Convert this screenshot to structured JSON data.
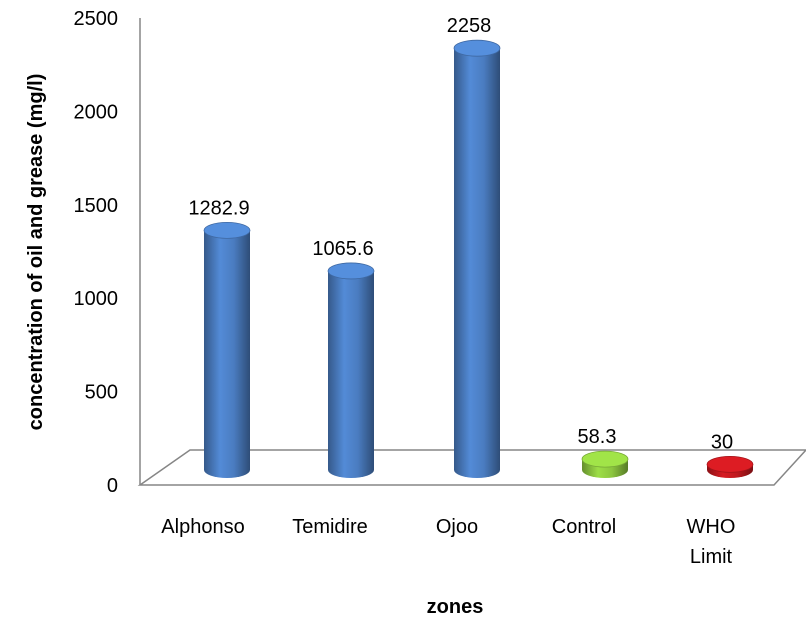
{
  "chart_data": {
    "type": "bar",
    "style": "3d-cylinder",
    "categories": [
      "Alphonso",
      "Temidire",
      "Ojoo",
      "Control",
      "WHO Limit"
    ],
    "values": [
      1282.9,
      1065.6,
      2258,
      58.3,
      30
    ],
    "data_labels": [
      "1282.9",
      "1065.6",
      "2258",
      "58.3",
      "30"
    ],
    "colors": [
      "#4a7cc0",
      "#4a7cc0",
      "#4a7cc0",
      "#8cc63f",
      "#c0181e"
    ],
    "xlabel": "zones",
    "ylabel": "concentration of oil and grease (mg/l)",
    "ylim": [
      0,
      2500
    ],
    "yticks": [
      0,
      500,
      1000,
      1500,
      2000,
      2500
    ],
    "grid": false,
    "legend": "none"
  }
}
